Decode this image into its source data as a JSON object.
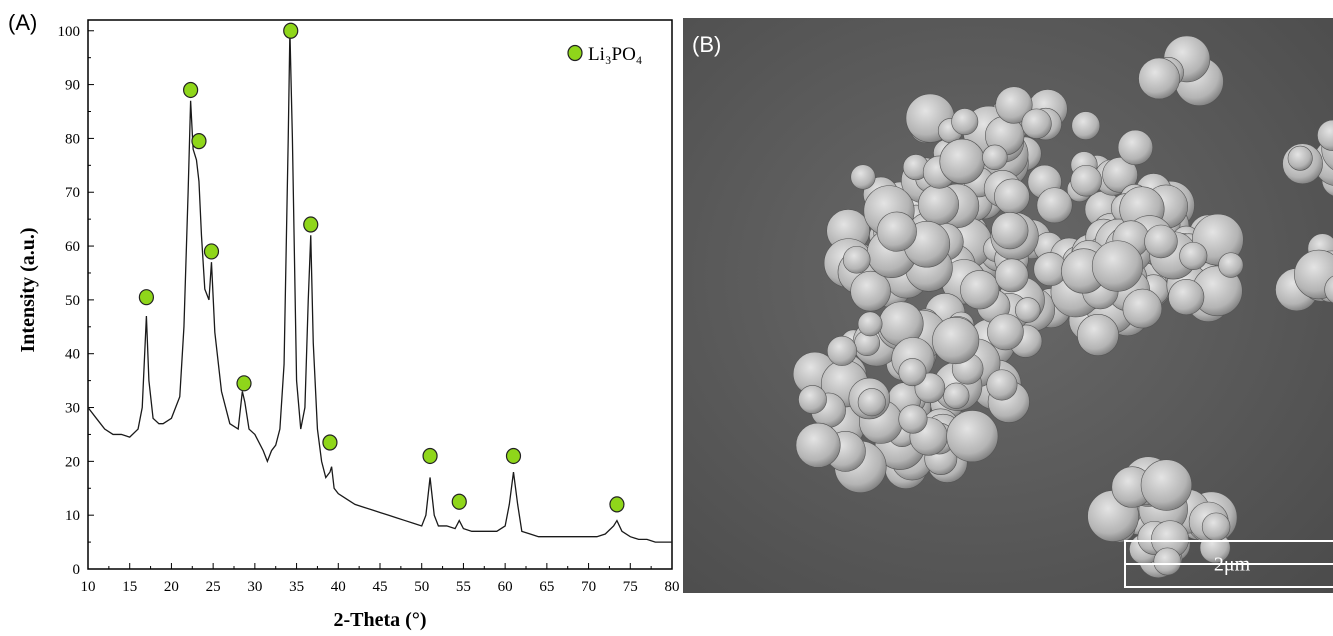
{
  "chart_data": {
    "type": "line",
    "xlabel": "2-Theta (°)",
    "ylabel": "Intensity (a.u.)",
    "xlim": [
      10,
      80
    ],
    "ylim": [
      0,
      102
    ],
    "xticks": [
      10,
      15,
      20,
      25,
      30,
      35,
      40,
      45,
      50,
      55,
      60,
      65,
      70,
      75,
      80
    ],
    "yticks": [
      0,
      10,
      20,
      30,
      40,
      50,
      60,
      70,
      80,
      90,
      100
    ],
    "legend": "top-right",
    "series": [
      {
        "type": "line",
        "color": "#1a1a1a",
        "x": [
          10,
          11,
          12,
          13,
          14,
          15,
          16,
          16.5,
          17,
          17.3,
          17.8,
          18.5,
          19,
          20,
          21,
          21.5,
          22,
          22.3,
          22.6,
          23,
          23.3,
          23.6,
          24,
          24.5,
          24.8,
          25.2,
          26,
          27,
          28,
          28.5,
          28.8,
          29.3,
          30,
          31,
          31.5,
          32,
          32.5,
          33,
          33.5,
          34,
          34.2,
          34.5,
          35,
          35.5,
          36,
          36.4,
          36.7,
          37,
          37.5,
          38,
          38.5,
          39,
          39.2,
          39.5,
          40,
          41,
          42,
          43,
          44,
          45,
          46,
          47,
          48,
          49,
          50,
          50.5,
          51,
          51.5,
          52,
          53,
          54,
          54.5,
          55,
          56,
          57,
          58,
          59,
          60,
          60.5,
          61,
          61.5,
          62,
          63,
          64,
          65,
          66,
          67,
          68,
          69,
          70,
          71,
          72,
          73,
          73.4,
          74,
          75,
          76,
          77,
          78,
          79,
          80
        ],
        "values": [
          30,
          28,
          26,
          25,
          25,
          24.5,
          26,
          30,
          47,
          35,
          28,
          27,
          27,
          28,
          32,
          45,
          70,
          87,
          78,
          76,
          72,
          62,
          52,
          50,
          57,
          44,
          33,
          27,
          26,
          33,
          31,
          26,
          25,
          22,
          20,
          22,
          23,
          26,
          38,
          80,
          100,
          80,
          35,
          26,
          30,
          50,
          62,
          42,
          26,
          20,
          17,
          18,
          19,
          15,
          14,
          13,
          12,
          11.5,
          11,
          10.5,
          10,
          9.5,
          9,
          8.5,
          8,
          10,
          17,
          10,
          8,
          8,
          7.5,
          9,
          7.5,
          7,
          7,
          7,
          7,
          8,
          12,
          18,
          12,
          7,
          6.5,
          6,
          6,
          6,
          6,
          6,
          6,
          6,
          6,
          6.5,
          8,
          9,
          7,
          6,
          5.5,
          5.5,
          5,
          5,
          5
        ]
      },
      {
        "type": "scatter",
        "name": "Li₃PO₄",
        "color": "#8fd61a",
        "x": [
          17,
          22.3,
          23.3,
          24.8,
          28.7,
          34.3,
          36.7,
          39,
          51,
          54.5,
          61,
          73.4
        ],
        "values": [
          50.5,
          89,
          79.5,
          59,
          34.5,
          100,
          64,
          23.5,
          21,
          12.5,
          21,
          12
        ]
      }
    ]
  },
  "panels": {
    "a_label": "(A)",
    "b_label": "(B)",
    "scale_bar": "2μm"
  }
}
